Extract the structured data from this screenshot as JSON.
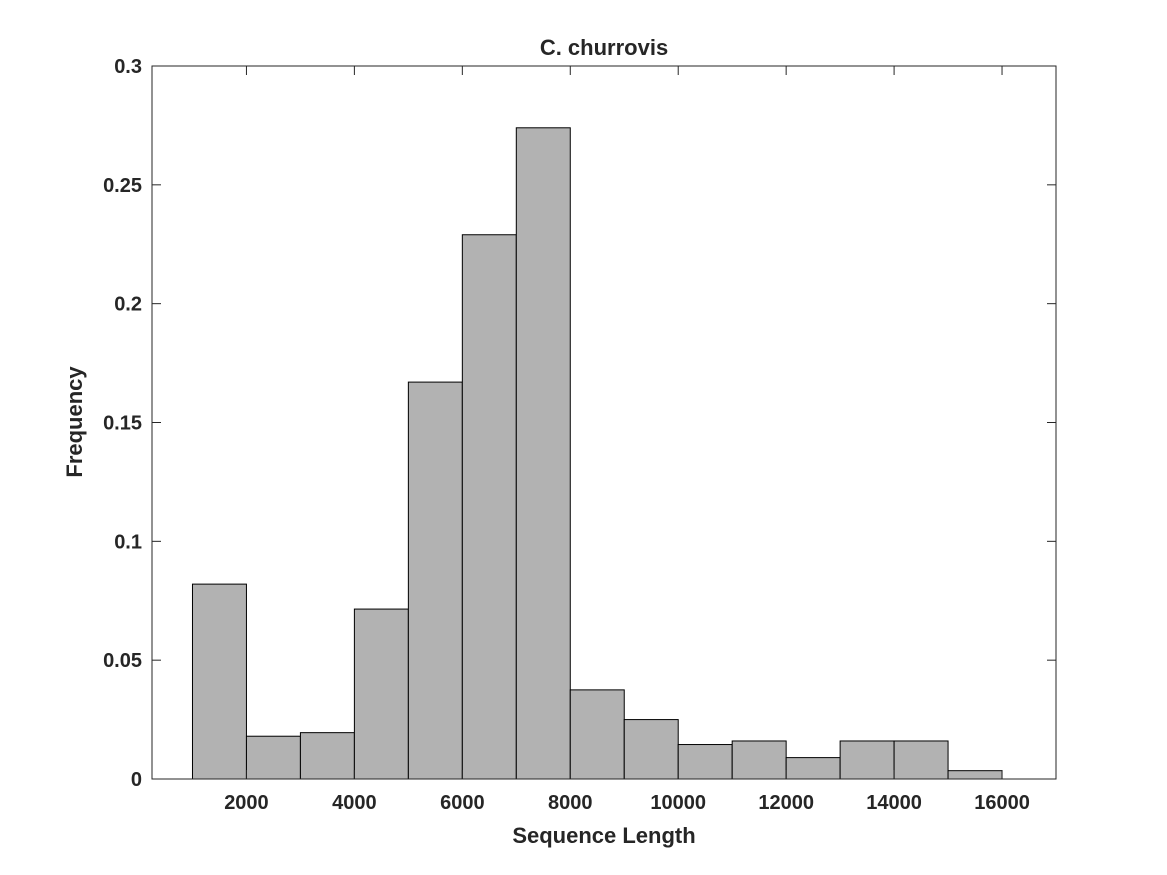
{
  "chart_data": {
    "type": "bar",
    "title": "C. churrovis",
    "xlabel": "Sequence Length",
    "ylabel": "Frequency",
    "xlim": [
      250,
      17000
    ],
    "ylim": [
      0,
      0.3
    ],
    "xticks": [
      2000,
      4000,
      6000,
      8000,
      10000,
      12000,
      14000,
      16000
    ],
    "xtick_labels": [
      "2000",
      "4000",
      "6000",
      "8000",
      "10000",
      "12000",
      "14000",
      "16000"
    ],
    "yticks": [
      0,
      0.05,
      0.1,
      0.15,
      0.2,
      0.25,
      0.3
    ],
    "ytick_labels": [
      "0",
      "0.05",
      "0.1",
      "0.15",
      "0.2",
      "0.25",
      "0.3"
    ],
    "bin_edges": [
      1000,
      2000,
      3000,
      4000,
      5000,
      6000,
      7000,
      8000,
      9000,
      10000,
      11000,
      12000,
      13000,
      14000,
      15000,
      16000
    ],
    "values": [
      0.082,
      0.018,
      0.0195,
      0.0715,
      0.167,
      0.229,
      0.274,
      0.0375,
      0.025,
      0.0145,
      0.016,
      0.009,
      0.016,
      0.016,
      0.0035
    ],
    "grid": false,
    "colors": {
      "bar_fill": "#b2b2b2",
      "bar_edge": "#000000",
      "axis": "#262626"
    }
  }
}
